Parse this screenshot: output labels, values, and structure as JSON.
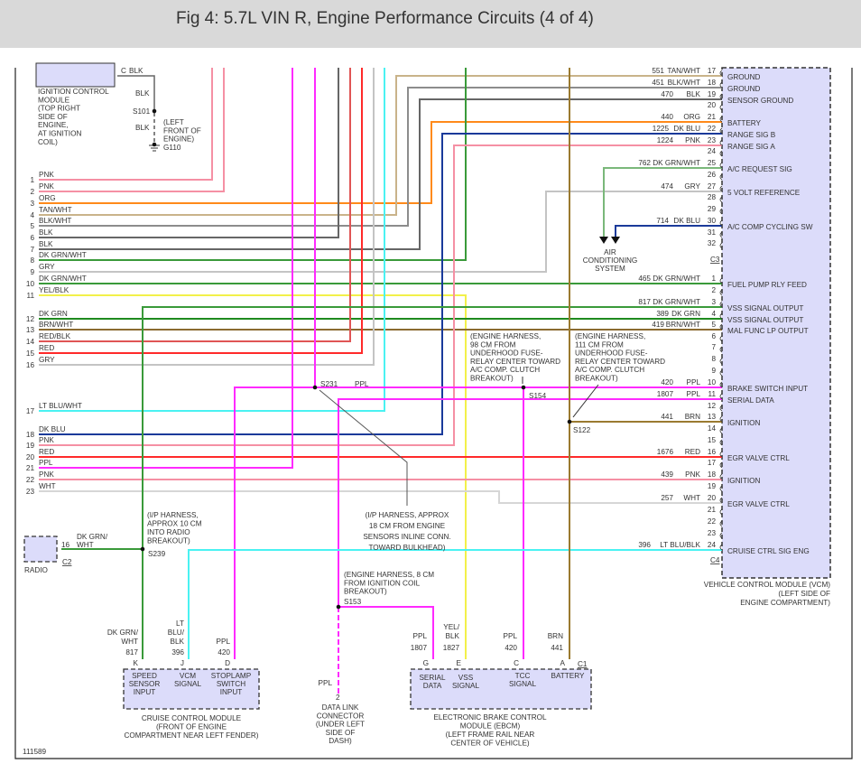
{
  "header": {
    "title": "Fig 4: 5.7L VIN R, Engine Performance Circuits (4 of 4)"
  },
  "figure_id": "111589",
  "wire_colors": {
    "PNK": "#f590a4",
    "ORG": "#ff8a1a",
    "TAN/WHT": "#c9b38a",
    "BLK/WHT": "#8c8c8c",
    "BLK": "#666666",
    "DK GRN/WHT": "#3a9a3a",
    "GRY": "#c4c4c4",
    "YEL/BLK": "#f2f04a",
    "DK GRN": "#1f8a1f",
    "BRN/WHT": "#8a6a30",
    "RED/BLK": "#e05555",
    "RED": "#ff2a2a",
    "LT BLU/WHT": "#4af2f2",
    "LT BLU/BLK": "#4af2f2",
    "DK BLU": "#1a3a9a",
    "PPL": "#ff2aff",
    "WHT": "#d6d6d6",
    "BRN": "#9a7a30",
    "AC_GRN": "#7ab87a"
  },
  "ignition_module": {
    "pin": "C",
    "wire": "BLK",
    "lines": [
      "IGNITION CONTROL",
      "MODULE",
      "(TOP RIGHT",
      "SIDE OF",
      "ENGINE,",
      "AT IGNITION",
      "COIL)"
    ],
    "wire_upper": "BLK",
    "splice": "S101",
    "wire_lower": "BLK",
    "ground_note": [
      "(LEFT",
      "FRONT OF",
      "ENGINE)"
    ],
    "ground": "G110"
  },
  "left_connector": {
    "rows": [
      {
        "num": "1",
        "color": "PNK"
      },
      {
        "num": "2",
        "color": "PNK"
      },
      {
        "num": "3",
        "color": "ORG"
      },
      {
        "num": "4",
        "color": "TAN/WHT"
      },
      {
        "num": "5",
        "color": "BLK/WHT"
      },
      {
        "num": "6",
        "color": "BLK"
      },
      {
        "num": "7",
        "color": "BLK"
      },
      {
        "num": "8",
        "color": "DK GRN/WHT"
      },
      {
        "num": "9",
        "color": "GRY"
      },
      {
        "num": "10",
        "color": "DK GRN/WHT"
      },
      {
        "num": "11",
        "color": "YEL/BLK"
      },
      {
        "num": "12",
        "color": "DK GRN"
      },
      {
        "num": "13",
        "color": "BRN/WHT"
      },
      {
        "num": "14",
        "color": "RED/BLK"
      },
      {
        "num": "15",
        "color": "RED"
      },
      {
        "num": "16",
        "color": "GRY"
      },
      {
        "num": "17",
        "color": "LT BLU/WHT"
      },
      {
        "num": "18",
        "color": "DK BLU"
      },
      {
        "num": "19",
        "color": "PNK"
      },
      {
        "num": "20",
        "color": "RED"
      },
      {
        "num": "21",
        "color": "PPL"
      },
      {
        "num": "22",
        "color": "PNK"
      },
      {
        "num": "23",
        "color": "WHT"
      }
    ]
  },
  "vcm": {
    "c3_label": "C3",
    "c4_label": "C4",
    "c3_pins": [
      {
        "pin": "17",
        "circuit": "551",
        "color": "TAN/WHT",
        "function": "GROUND"
      },
      {
        "pin": "18",
        "circuit": "451",
        "color": "BLK/WHT",
        "function": "GROUND"
      },
      {
        "pin": "19",
        "circuit": "470",
        "color": "BLK",
        "function": "SENSOR GROUND"
      },
      {
        "pin": "20",
        "circuit": "",
        "color": "",
        "function": ""
      },
      {
        "pin": "21",
        "circuit": "440",
        "color": "ORG",
        "function": "BATTERY"
      },
      {
        "pin": "22",
        "circuit": "1225",
        "color": "DK BLU",
        "function": "RANGE SIG B"
      },
      {
        "pin": "23",
        "circuit": "1224",
        "color": "PNK",
        "function": "RANGE SIG A"
      },
      {
        "pin": "24",
        "circuit": "",
        "color": "",
        "function": ""
      },
      {
        "pin": "25",
        "circuit": "762",
        "color": "DK GRN/WHT",
        "function": "A/C REQUEST SIG"
      },
      {
        "pin": "26",
        "circuit": "",
        "color": "",
        "function": ""
      },
      {
        "pin": "27",
        "circuit": "474",
        "color": "GRY",
        "function": "5 VOLT REFERENCE"
      },
      {
        "pin": "28",
        "circuit": "",
        "color": "",
        "function": ""
      },
      {
        "pin": "29",
        "circuit": "",
        "color": "",
        "function": ""
      },
      {
        "pin": "30",
        "circuit": "714",
        "color": "DK BLU",
        "function": "A/C COMP CYCLING SW"
      },
      {
        "pin": "31",
        "circuit": "",
        "color": "",
        "function": ""
      },
      {
        "pin": "32",
        "circuit": "",
        "color": "",
        "function": ""
      }
    ],
    "c4_pins": [
      {
        "pin": "1",
        "circuit": "465",
        "color": "DK GRN/WHT",
        "function": "FUEL PUMP RLY FEED"
      },
      {
        "pin": "2",
        "circuit": "",
        "color": "",
        "function": ""
      },
      {
        "pin": "3",
        "circuit": "817",
        "color": "DK GRN/WHT",
        "function": "VSS SIGNAL OUTPUT"
      },
      {
        "pin": "4",
        "circuit": "389",
        "color": "DK GRN",
        "function": "VSS SIGNAL OUTPUT"
      },
      {
        "pin": "5",
        "circuit": "419",
        "color": "BRN/WHT",
        "function": "MAL FUNC LP OUTPUT"
      },
      {
        "pin": "6",
        "circuit": "",
        "color": "",
        "function": ""
      },
      {
        "pin": "7",
        "circuit": "",
        "color": "",
        "function": ""
      },
      {
        "pin": "8",
        "circuit": "",
        "color": "",
        "function": ""
      },
      {
        "pin": "9",
        "circuit": "",
        "color": "",
        "function": ""
      },
      {
        "pin": "10",
        "circuit": "420",
        "color": "PPL",
        "function": "BRAKE SWITCH INPUT"
      },
      {
        "pin": "11",
        "circuit": "1807",
        "color": "PPL",
        "function": "SERIAL DATA"
      },
      {
        "pin": "12",
        "circuit": "",
        "color": "",
        "function": ""
      },
      {
        "pin": "13",
        "circuit": "441",
        "color": "BRN",
        "function": "IGNITION"
      },
      {
        "pin": "14",
        "circuit": "",
        "color": "",
        "function": ""
      },
      {
        "pin": "15",
        "circuit": "",
        "color": "",
        "function": ""
      },
      {
        "pin": "16",
        "circuit": "1676",
        "color": "RED",
        "function": "EGR VALVE CTRL"
      },
      {
        "pin": "17",
        "circuit": "",
        "color": "",
        "function": ""
      },
      {
        "pin": "18",
        "circuit": "439",
        "color": "PNK",
        "function": "IGNITION"
      },
      {
        "pin": "19",
        "circuit": "",
        "color": "",
        "function": ""
      },
      {
        "pin": "20",
        "circuit": "257",
        "color": "WHT",
        "function": "EGR VALVE CTRL"
      },
      {
        "pin": "21",
        "circuit": "",
        "color": "",
        "function": ""
      },
      {
        "pin": "22",
        "circuit": "",
        "color": "",
        "function": ""
      },
      {
        "pin": "23",
        "circuit": "",
        "color": "",
        "function": ""
      },
      {
        "pin": "24",
        "circuit": "396",
        "color": "LT BLU/BLK",
        "function": "CRUISE CTRL SIG ENG"
      }
    ],
    "caption": [
      "VEHICLE CONTROL MODULE (VCM)",
      "(LEFT SIDE OF",
      "ENGINE COMPARTMENT)"
    ]
  },
  "ac_system": [
    "AIR",
    "CONDITIONING",
    "SYSTEM"
  ],
  "splices": {
    "s231": {
      "label": "S231",
      "wire": "PPL",
      "note": [
        "(I/P HARNESS, APPROX",
        "18 CM FROM ENGINE",
        "SENSORS INLINE CONN.",
        "TOWARD BULKHEAD)"
      ]
    },
    "s239": {
      "label": "S239",
      "note": [
        "(I/P HARNESS,",
        "APPROX 10 CM",
        "INTO RADIO",
        "BREAKOUT)"
      ]
    },
    "s153": {
      "label": "S153",
      "note": [
        "(ENGINE HARNESS, 8 CM",
        "FROM IGNITION COIL",
        "BREAKOUT)"
      ]
    },
    "s154": {
      "label": "S154",
      "note": [
        "(ENGINE HARNESS,",
        "98 CM FROM",
        "UNDERHOOD FUSE-",
        "RELAY CENTER TOWARD",
        "A/C COMP. CLUTCH",
        "BREAKOUT)"
      ]
    },
    "s122": {
      "label": "S122",
      "note": [
        "(ENGINE HARNESS,",
        "111 CM FROM",
        "UNDERHOOD FUSE-",
        "RELAY CENTER TOWARD",
        "A/C COMP. CLUTCH",
        "BREAKOUT)"
      ]
    }
  },
  "radio": {
    "label": "RADIO",
    "pin": "16",
    "connector": "C2",
    "wire": [
      "DK GRN/",
      "WHT"
    ]
  },
  "cruise_module": {
    "pins": [
      {
        "pin": "K",
        "wire": [
          "DK GRN/",
          "WHT"
        ],
        "circuit": "817",
        "function": [
          "SPEED",
          "SENSOR",
          "INPUT"
        ]
      },
      {
        "pin": "J",
        "wire": [
          "LT",
          "BLU/",
          "BLK"
        ],
        "circuit": "396",
        "function": [
          "VCM",
          "SIGNAL"
        ]
      },
      {
        "pin": "D",
        "wire": [
          "PPL"
        ],
        "circuit": "420",
        "function": [
          "STOPLAMP",
          "SWITCH",
          "INPUT"
        ]
      }
    ],
    "caption": [
      "CRUISE CONTROL MODULE",
      "(FRONT OF ENGINE",
      "COMPARTMENT NEAR LEFT FENDER)"
    ]
  },
  "dlc": {
    "wire": "PPL",
    "pin": "2",
    "caption": [
      "DATA LINK",
      "CONNECTOR",
      "(UNDER LEFT",
      "SIDE OF",
      "DASH)"
    ]
  },
  "ebcm": {
    "connector": "C1",
    "pins": [
      {
        "pin": "G",
        "wire": [
          "PPL"
        ],
        "circuit": "1807",
        "function": [
          "SERIAL",
          "DATA"
        ]
      },
      {
        "pin": "E",
        "wire": [
          "YEL/",
          "BLK"
        ],
        "circuit": "1827",
        "function": [
          "VSS",
          "SIGNAL"
        ]
      },
      {
        "pin": "C",
        "wire": [
          "PPL"
        ],
        "circuit": "420",
        "function": [
          "TCC",
          "SIGNAL"
        ]
      },
      {
        "pin": "A",
        "wire": [
          "BRN"
        ],
        "circuit": "441",
        "function": [
          "BATTERY"
        ]
      }
    ],
    "caption": [
      "ELECTRONIC BRAKE CONTROL",
      "MODULE (EBCM)",
      "(LEFT FRAME RAIL NEAR",
      "CENTER OF VEHICLE)"
    ]
  }
}
